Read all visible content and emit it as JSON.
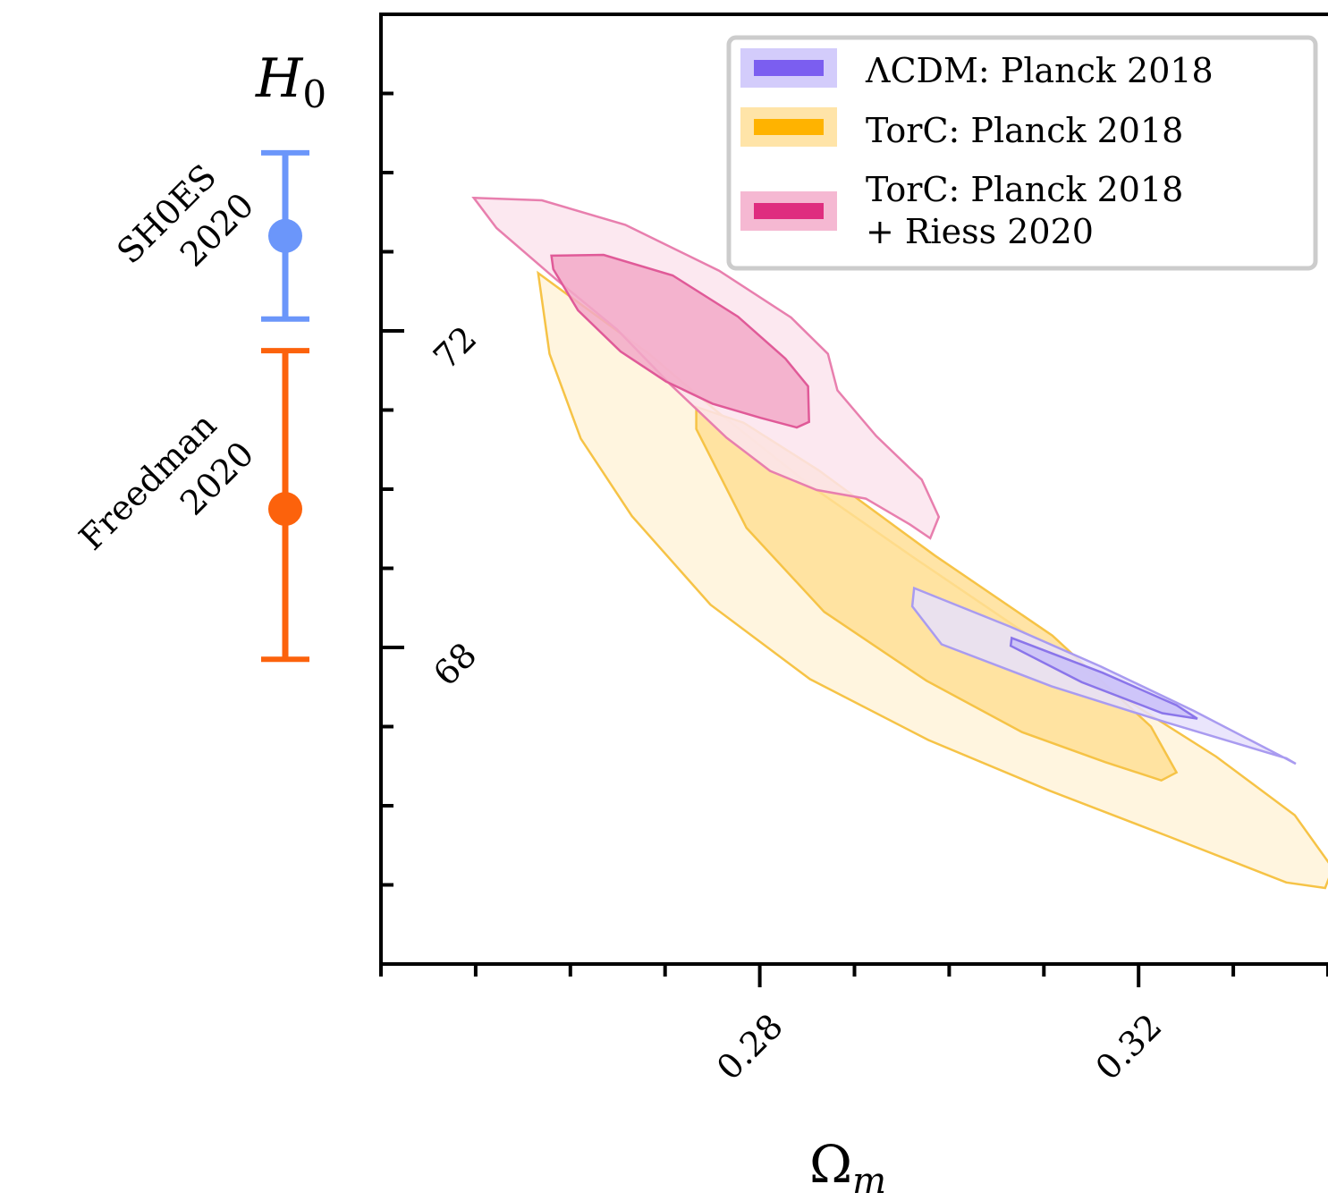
{
  "chart_data": {
    "type": "contour",
    "ylabel": "H",
    "ylabel_sub": "0",
    "xlabel": "Ω",
    "xlabel_sub": "m",
    "xlim": [
      0.24,
      0.34
    ],
    "ylim": [
      64.0,
      76.0
    ],
    "x_ticks_major": [
      0.28,
      0.32
    ],
    "x_tick_labels": [
      "0.28",
      "0.32"
    ],
    "x_ticks_minor_step": 0.01,
    "y_ticks_major": [
      68,
      72
    ],
    "y_tick_labels": [
      "68",
      "72"
    ],
    "y_ticks_minor_step": 1,
    "legend": {
      "placement": "top-right",
      "entries": [
        {
          "label": "ΛCDM: Planck 2018",
          "fill": "#d3ccfb",
          "line": "#7b5ef0"
        },
        {
          "label": "TorC: Planck 2018",
          "fill": "#ffe4a8",
          "line": "#ffb300"
        },
        {
          "label_lines": [
            "TorC: Planck 2018",
            "+ Riess 2020"
          ],
          "fill": "#f5b8d2",
          "line": "#df2d7f"
        }
      ]
    },
    "contours": [
      {
        "series": "TorC: Planck 2018",
        "level": "95%",
        "fill": "#fff3d9",
        "stroke": "#f6c346",
        "points": [
          [
            0.2566,
            72.73
          ],
          [
            0.2622,
            72.24
          ],
          [
            0.2683,
            71.71
          ],
          [
            0.2753,
            71.0
          ],
          [
            0.2855,
            70.03
          ],
          [
            0.2962,
            69.14
          ],
          [
            0.3068,
            68.28
          ],
          [
            0.3175,
            67.43
          ],
          [
            0.3282,
            66.62
          ],
          [
            0.3365,
            65.88
          ],
          [
            0.3405,
            65.21
          ],
          [
            0.3397,
            64.96
          ],
          [
            0.3356,
            65.03
          ],
          [
            0.3232,
            65.61
          ],
          [
            0.3106,
            66.19
          ],
          [
            0.2978,
            66.83
          ],
          [
            0.2853,
            67.6
          ],
          [
            0.2748,
            68.54
          ],
          [
            0.2665,
            69.66
          ],
          [
            0.2611,
            70.64
          ],
          [
            0.2578,
            71.71
          ],
          [
            0.2566,
            72.73
          ]
        ]
      },
      {
        "series": "TorC: Planck 2018",
        "level": "68%",
        "fill": "#ffdf96",
        "stroke": "#f6c346",
        "points": [
          [
            0.2733,
            71.04
          ],
          [
            0.2783,
            70.84
          ],
          [
            0.2862,
            70.24
          ],
          [
            0.2985,
            69.16
          ],
          [
            0.3109,
            68.15
          ],
          [
            0.3213,
            67.0
          ],
          [
            0.324,
            66.42
          ],
          [
            0.3224,
            66.32
          ],
          [
            0.3165,
            66.55
          ],
          [
            0.3077,
            66.93
          ],
          [
            0.2976,
            67.58
          ],
          [
            0.2868,
            68.45
          ],
          [
            0.2786,
            69.51
          ],
          [
            0.2733,
            70.76
          ],
          [
            0.2733,
            71.04
          ]
        ]
      },
      {
        "series": "ΛCDM: Planck 2018",
        "level": "95%",
        "fill": "#e6e1fb",
        "stroke": "#a99bf0",
        "points": [
          [
            0.2963,
            68.75
          ],
          [
            0.3065,
            68.26
          ],
          [
            0.316,
            67.76
          ],
          [
            0.3258,
            67.2
          ],
          [
            0.335,
            66.63
          ],
          [
            0.3366,
            66.53
          ],
          [
            0.3356,
            66.6
          ],
          [
            0.323,
            67.05
          ],
          [
            0.3108,
            67.51
          ],
          [
            0.2992,
            68.04
          ],
          [
            0.2961,
            68.52
          ],
          [
            0.2963,
            68.75
          ]
        ]
      },
      {
        "series": "ΛCDM: Planck 2018",
        "level": "68%",
        "fill": "#c9bff8",
        "stroke": "#8a75ea",
        "points": [
          [
            0.3066,
            68.12
          ],
          [
            0.3162,
            67.68
          ],
          [
            0.324,
            67.27
          ],
          [
            0.3262,
            67.1
          ],
          [
            0.3225,
            67.17
          ],
          [
            0.314,
            67.56
          ],
          [
            0.3065,
            68.02
          ],
          [
            0.3066,
            68.12
          ]
        ]
      },
      {
        "series": "TorC: Planck 2018 + Riess 2020",
        "level": "95%",
        "fill": "#fce4ed",
        "stroke": "#e87fae",
        "points": [
          [
            0.2498,
            73.68
          ],
          [
            0.257,
            73.65
          ],
          [
            0.2658,
            73.34
          ],
          [
            0.2757,
            72.76
          ],
          [
            0.2833,
            72.17
          ],
          [
            0.2872,
            71.71
          ],
          [
            0.2882,
            71.25
          ],
          [
            0.2923,
            70.67
          ],
          [
            0.2971,
            70.12
          ],
          [
            0.2989,
            69.65
          ],
          [
            0.298,
            69.38
          ],
          [
            0.2959,
            69.55
          ],
          [
            0.2912,
            69.88
          ],
          [
            0.286,
            69.99
          ],
          [
            0.2811,
            70.23
          ],
          [
            0.2765,
            70.65
          ],
          [
            0.2705,
            71.33
          ],
          [
            0.2649,
            72.02
          ],
          [
            0.2583,
            72.67
          ],
          [
            0.2522,
            73.3
          ],
          [
            0.2498,
            73.68
          ]
        ]
      },
      {
        "series": "TorC: Planck 2018 + Riess 2020",
        "level": "68%",
        "fill": "#f2a9c8",
        "stroke": "#e05a98",
        "points": [
          [
            0.258,
            72.95
          ],
          [
            0.2635,
            72.96
          ],
          [
            0.2708,
            72.7
          ],
          [
            0.2777,
            72.18
          ],
          [
            0.2827,
            71.65
          ],
          [
            0.2851,
            71.3
          ],
          [
            0.2852,
            70.85
          ],
          [
            0.2839,
            70.78
          ],
          [
            0.2801,
            70.9
          ],
          [
            0.275,
            71.08
          ],
          [
            0.2701,
            71.36
          ],
          [
            0.2653,
            71.74
          ],
          [
            0.2608,
            72.26
          ],
          [
            0.2582,
            72.78
          ],
          [
            0.258,
            72.95
          ]
        ]
      }
    ],
    "measurements": [
      {
        "label_lines": [
          "SH0ES",
          "2020"
        ],
        "value": 73.2,
        "low": 72.15,
        "high": 74.25,
        "color": "#6b96fa"
      },
      {
        "label_lines": [
          "Freedman",
          "2020"
        ],
        "value": 69.75,
        "low": 67.85,
        "high": 71.75,
        "color": "#fc620c"
      }
    ]
  }
}
